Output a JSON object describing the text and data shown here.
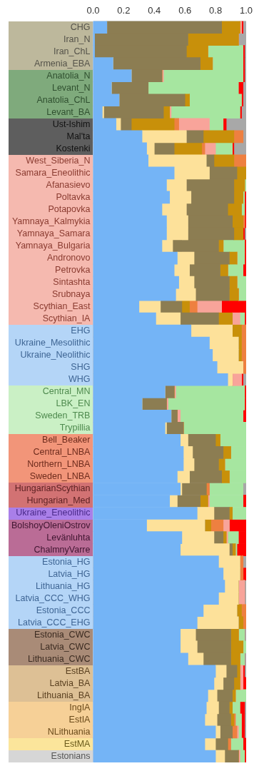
{
  "chart_data": {
    "type": "bar",
    "orientation": "horizontal",
    "stacked": true,
    "grid": false,
    "legend": false,
    "categories": [
      "CHG",
      "Iran_N",
      "Iran_ChL",
      "Armenia_EBA",
      "Anatolia_N",
      "Levant_N",
      "Anatolia_ChL",
      "Levant_BA",
      "Ust-Ishim",
      "Mal'ta",
      "Kostenki",
      "West_Siberia_N",
      "Samara_Eneolithic",
      "Afanasievo",
      "Poltavka",
      "Potapovka",
      "Yamnaya_Kalmykia",
      "Yamnaya_Samara",
      "Yamnaya_Bulgaria",
      "Andronovo",
      "Petrovka",
      "Sintashta",
      "Srubnaya",
      "Scythian_East",
      "Scythian_IA",
      "EHG",
      "Ukraine_Mesolithic",
      "Ukraine_Neolithic",
      "SHG",
      "WHG",
      "Central_MN",
      "LBK_EN",
      "Sweden_TRB",
      "Trypillia",
      "Bell_Beaker",
      "Central_LNBA",
      "Northern_LNBA",
      "Sweden_LNBA",
      "HungarianScythian",
      "Hungarian_Med",
      "Ukraine_Eneolithic",
      "BolshoyOleniOstrov",
      "Levänluhta",
      "ChalmnyVarre",
      "Estonia_HG",
      "Latvia_HG",
      "Lithuania_HG",
      "Latvia_CCC_WHG",
      "Estonia_CCC",
      "Latvia_CCC_EHG",
      "Estonia_CWC",
      "Latvia_CWC",
      "Lithuania_CWC",
      "EstBA",
      "Latvia_BA",
      "Lithuania_BA",
      "IngIA",
      "EstIA",
      "NLithuania",
      "EstMA",
      "Estonians"
    ],
    "xlim": [
      0,
      1
    ],
    "xticks": [
      {
        "value": 0,
        "label": "0.0"
      },
      {
        "value": 0.2,
        "label": "0.2"
      },
      {
        "value": 0.4,
        "label": "0.4"
      },
      {
        "value": 0.6,
        "label": "0.6"
      },
      {
        "value": 0.8,
        "label": "0.8"
      },
      {
        "value": 1,
        "label": "1.0"
      }
    ],
    "series": [
      {
        "color": "#74b4f6",
        "values": [
          0.09,
          0.01,
          0.01,
          0.13,
          0.25,
          0.12,
          0.17,
          0.06,
          0.15,
          0.32,
          0.35,
          0.36,
          0.53,
          0.48,
          0.5,
          0.45,
          0.48,
          0.48,
          0.45,
          0.55,
          0.53,
          0.56,
          0.54,
          0.3,
          0.41,
          0.64,
          0.76,
          0.78,
          0.81,
          0.88,
          0.47,
          0.32,
          0.51,
          0.47,
          0.57,
          0.59,
          0.59,
          0.55,
          0.57,
          0.5,
          0.68,
          0.35,
          0.58,
          0.57,
          0.82,
          0.85,
          0.86,
          0.82,
          0.72,
          0.68,
          0.57,
          0.57,
          0.62,
          0.8,
          0.79,
          0.75,
          0.74,
          0.73,
          0.8,
          0.73,
          0.8
        ]
      },
      {
        "color": "#fde19a",
        "values": [
          0,
          0,
          0,
          0,
          0,
          0,
          0,
          0.01,
          0.03,
          0.29,
          0.05,
          0.38,
          0.23,
          0.13,
          0.14,
          0.16,
          0.14,
          0.14,
          0.07,
          0.11,
          0.1,
          0.1,
          0.13,
          0.14,
          0.16,
          0.27,
          0.19,
          0.17,
          0.17,
          0.03,
          0,
          0,
          0,
          0.01,
          0.05,
          0.06,
          0.07,
          0.08,
          0.01,
          0.05,
          0.11,
          0.38,
          0.21,
          0.32,
          0.14,
          0.11,
          0.09,
          0.13,
          0.22,
          0.27,
          0.1,
          0.11,
          0.1,
          0.07,
          0.06,
          0.06,
          0.08,
          0.08,
          0.03,
          0.07,
          0.06
        ]
      },
      {
        "color": "#8c7d52",
        "values": [
          0.75,
          0.61,
          0.6,
          0.57,
          0.2,
          0.24,
          0.43,
          0.39,
          0.07,
          0.11,
          0.13,
          0.05,
          0.18,
          0.31,
          0.28,
          0.27,
          0.29,
          0.3,
          0.3,
          0.23,
          0.2,
          0.23,
          0.22,
          0.14,
          0.25,
          0,
          0,
          0,
          0,
          0,
          0.06,
          0.16,
          0.04,
          0.11,
          0.18,
          0.2,
          0.16,
          0.21,
          0.16,
          0.15,
          0.1,
          0,
          0.06,
          0.02,
          0,
          0,
          0,
          0,
          0,
          0,
          0.23,
          0.22,
          0.18,
          0.07,
          0.07,
          0.1,
          0.07,
          0.09,
          0.08,
          0.08,
          0.09
        ]
      },
      {
        "color": "#c8900a",
        "values": [
          0.12,
          0.33,
          0.14,
          0.08,
          0,
          0,
          0.03,
          0.04,
          0.28,
          0.2,
          0.18,
          0.13,
          0.06,
          0.07,
          0.06,
          0.09,
          0.07,
          0.06,
          0.03,
          0.05,
          0.05,
          0.05,
          0.06,
          0.05,
          0.09,
          0.06,
          0.02,
          0.02,
          0,
          0,
          0,
          0,
          0,
          0,
          0.03,
          0.05,
          0.04,
          0.05,
          0,
          0.05,
          0.02,
          0.04,
          0.02,
          0.02,
          0,
          0,
          0,
          0,
          0.03,
          0.03,
          0.05,
          0.08,
          0.06,
          0.02,
          0.04,
          0.02,
          0.02,
          0.02,
          0,
          0,
          0
        ]
      },
      {
        "color": "#ee8040",
        "values": [
          0,
          0,
          0,
          0,
          0,
          0,
          0,
          0,
          0.03,
          0.06,
          0.02,
          0.08,
          0,
          0,
          0,
          0,
          0.01,
          0,
          0,
          0,
          0,
          0,
          0,
          0.05,
          0,
          0.03,
          0.03,
          0.03,
          0.02,
          0,
          0,
          0,
          0,
          0,
          0,
          0,
          0,
          0,
          0.02,
          0,
          0,
          0.08,
          0,
          0,
          0.02,
          0.02,
          0,
          0,
          0.03,
          0.02,
          0,
          0,
          0,
          0,
          0,
          0,
          0,
          0.01,
          0.03,
          0.02,
          0
        ]
      },
      {
        "color": "#f8a49a",
        "values": [
          0.01,
          0,
          0,
          0,
          0.01,
          0,
          0,
          0.01,
          0.2,
          0,
          0.07,
          0,
          0,
          0,
          0,
          0,
          0,
          0,
          0,
          0,
          0,
          0,
          0,
          0.16,
          0.05,
          0,
          0,
          0,
          0,
          0.06,
          0.01,
          0.01,
          0.02,
          0,
          0,
          0,
          0,
          0,
          0,
          0.01,
          0,
          0.04,
          0.01,
          0,
          0,
          0,
          0.04,
          0.04,
          0,
          0,
          0,
          0,
          0,
          0.02,
          0.02,
          0,
          0,
          0,
          0.01,
          0,
          0.01
        ]
      },
      {
        "color": "#a6e6a0",
        "values": [
          0,
          0,
          0.23,
          0.2,
          0.52,
          0.59,
          0.34,
          0.45,
          0.09,
          0,
          0.11,
          0,
          0,
          0.01,
          0.01,
          0.02,
          0,
          0,
          0.14,
          0.05,
          0.1,
          0.06,
          0.05,
          0,
          0.03,
          0,
          0,
          0,
          0,
          0,
          0.45,
          0.5,
          0.41,
          0.41,
          0.17,
          0.1,
          0.14,
          0.11,
          0.22,
          0.22,
          0.09,
          0,
          0.07,
          0.01,
          0,
          0,
          0,
          0,
          0,
          0,
          0.04,
          0.02,
          0.03,
          0,
          0,
          0.07,
          0.05,
          0.04,
          0.02,
          0.08,
          0.03
        ]
      },
      {
        "color": "#ff0000",
        "values": [
          0.01,
          0,
          0.01,
          0.01,
          0.01,
          0.03,
          0.01,
          0.01,
          0.02,
          0,
          0.01,
          0,
          0,
          0,
          0.01,
          0.01,
          0.01,
          0.01,
          0.01,
          0.01,
          0.02,
          0,
          0,
          0.16,
          0.01,
          0,
          0,
          0,
          0,
          0.01,
          0.01,
          0.01,
          0.02,
          0,
          0,
          0,
          0,
          0,
          0,
          0.02,
          0,
          0.11,
          0.05,
          0.06,
          0,
          0.02,
          0,
          0,
          0,
          0,
          0,
          0,
          0,
          0.01,
          0.02,
          0,
          0.03,
          0.02,
          0.02,
          0.02,
          0.01
        ]
      },
      {
        "color": "#a8a8a8",
        "values": [
          0.02,
          0.05,
          0.01,
          0.01,
          0.01,
          0.02,
          0.02,
          0.03,
          0.13,
          0.02,
          0.08,
          0,
          0,
          0,
          0,
          0,
          0,
          0.01,
          0,
          0,
          0,
          0,
          0,
          0,
          0,
          0,
          0,
          0,
          0,
          0.02,
          0,
          0,
          0,
          0,
          0,
          0,
          0,
          0,
          0.02,
          0,
          0,
          0,
          0,
          0,
          0.02,
          0,
          0.01,
          0.01,
          0,
          0,
          0.01,
          0,
          0.01,
          0.01,
          0,
          0,
          0.01,
          0.01,
          0.01,
          0,
          0
        ]
      }
    ]
  }
}
